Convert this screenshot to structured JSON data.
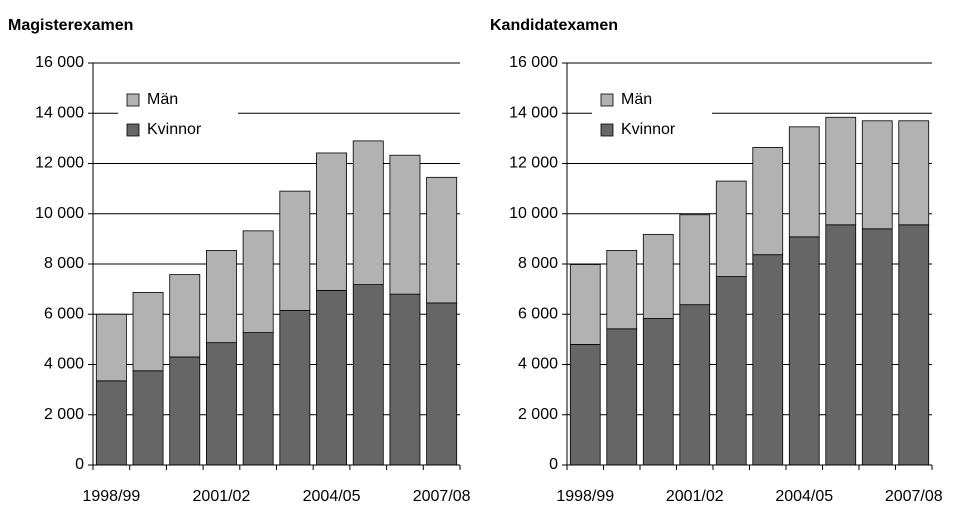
{
  "chart_data": [
    {
      "type": "stacked_bar",
      "title": "Magisterexamen",
      "categories": [
        "1998/99",
        null,
        null,
        "2001/02",
        null,
        null,
        "2004/05",
        null,
        null,
        "2007/08"
      ],
      "series": [
        {
          "name": "Kvinnor",
          "color": "#666666",
          "values": [
            3350,
            3750,
            4300,
            4870,
            5270,
            6150,
            6950,
            7180,
            6800,
            6450
          ]
        },
        {
          "name": "Män",
          "color": "#b2b2b2",
          "values": [
            2650,
            3120,
            3280,
            3670,
            4050,
            4750,
            5470,
            5720,
            5530,
            5000
          ]
        }
      ],
      "ylim": [
        0,
        16000
      ],
      "yticks": [
        0,
        {
          "value": 2000,
          "label": "2 000"
        },
        {
          "value": 4000,
          "label": "4 000"
        },
        {
          "value": 6000,
          "label": "6 000"
        },
        {
          "value": 8000,
          "label": "8 000"
        },
        {
          "value": 10000,
          "label": "10 000"
        },
        {
          "value": 12000,
          "label": "12 000"
        },
        {
          "value": 14000,
          "label": "14 000"
        },
        {
          "value": 16000,
          "label": "16 000"
        }
      ],
      "grid": true,
      "legend": "top-left"
    },
    {
      "type": "stacked_bar",
      "title": "Kandidatexamen",
      "categories": [
        "1998/99",
        null,
        null,
        "2001/02",
        null,
        null,
        "2004/05",
        null,
        null,
        "2007/08"
      ],
      "series": [
        {
          "name": "Kvinnor",
          "color": "#666666",
          "values": [
            4800,
            5420,
            5830,
            6380,
            7500,
            8370,
            9080,
            9560,
            9400,
            9560
          ]
        },
        {
          "name": "Män",
          "color": "#b2b2b2",
          "values": [
            3180,
            3120,
            3350,
            3580,
            3800,
            4270,
            4380,
            4280,
            4300,
            4140
          ]
        }
      ],
      "ylim": [
        0,
        16000
      ],
      "yticks": [
        0,
        {
          "value": 2000,
          "label": "2 000"
        },
        {
          "value": 4000,
          "label": "4 000"
        },
        {
          "value": 6000,
          "label": "6 000"
        },
        {
          "value": 8000,
          "label": "8 000"
        },
        {
          "value": 10000,
          "label": "10 000"
        },
        {
          "value": 12000,
          "label": "12 000"
        },
        {
          "value": 14000,
          "label": "14 000"
        },
        {
          "value": 16000,
          "label": "16 000"
        }
      ],
      "grid": true,
      "legend": "top-left"
    }
  ]
}
